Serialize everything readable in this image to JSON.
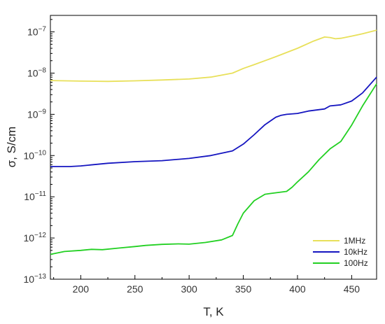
{
  "chart_data": {
    "type": "line",
    "title": "",
    "xlabel": "T, K",
    "ylabel": "σ, S/cm",
    "xlim": [
      172,
      473
    ],
    "ylim_log10": [
      -13,
      -6.6
    ],
    "y_scale": "log",
    "grid": false,
    "legend_position": "bottom-right",
    "x_ticks": [
      200,
      250,
      300,
      350,
      400,
      450
    ],
    "y_ticks": [
      {
        "exp": -13,
        "label": "−13"
      },
      {
        "exp": -12,
        "label": "−12"
      },
      {
        "exp": -11,
        "label": "−11"
      },
      {
        "exp": -10,
        "label": "−10"
      },
      {
        "exp": -9,
        "label": "−9"
      },
      {
        "exp": -8,
        "label": "−8"
      },
      {
        "exp": -7,
        "label": "−7"
      }
    ],
    "y_tick_base": "10",
    "series": [
      {
        "name": "1MHz",
        "color": "#e8e05a",
        "x": [
          172,
          200,
          225,
          250,
          275,
          300,
          320,
          340,
          350,
          360,
          380,
          400,
          415,
          425,
          430,
          435,
          440,
          450,
          460,
          473
        ],
        "y": [
          6.6e-09,
          6.4e-09,
          6.3e-09,
          6.5e-09,
          6.8e-09,
          7.2e-09,
          8e-09,
          1e-08,
          1.3e-08,
          1.6e-08,
          2.5e-08,
          4e-08,
          6e-08,
          7.5e-08,
          7.3e-08,
          6.8e-08,
          7e-08,
          7.9e-08,
          9e-08,
          1.1e-07
        ]
      },
      {
        "name": "10kHz",
        "color": "#1515c0",
        "x": [
          172,
          190,
          200,
          225,
          250,
          275,
          300,
          320,
          340,
          350,
          360,
          370,
          380,
          385,
          390,
          400,
          410,
          420,
          425,
          430,
          440,
          450,
          460,
          473
        ],
        "y": [
          5.4e-11,
          5.4e-11,
          5.6e-11,
          6.5e-11,
          7.1e-11,
          7.5e-11,
          8.5e-11,
          1e-10,
          1.3e-10,
          1.9e-10,
          3.2e-10,
          5.6e-10,
          8.5e-10,
          9.5e-10,
          1e-09,
          1.05e-09,
          1.2e-09,
          1.3e-09,
          1.35e-09,
          1.6e-09,
          1.7e-09,
          2.1e-09,
          3.3e-09,
          8e-09
        ]
      },
      {
        "name": "100Hz",
        "color": "#22d022",
        "x": [
          172,
          185,
          200,
          210,
          220,
          235,
          250,
          260,
          275,
          290,
          300,
          315,
          330,
          340,
          345,
          350,
          360,
          370,
          375,
          380,
          390,
          395,
          400,
          410,
          420,
          430,
          440,
          450,
          460,
          473
        ],
        "y": [
          4e-13,
          4.7e-13,
          5e-13,
          5.3e-13,
          5.2e-13,
          5.7e-13,
          6.2e-13,
          6.6e-13,
          7e-13,
          7.2e-13,
          7.1e-13,
          7.8e-13,
          9e-13,
          1.15e-12,
          2.2e-12,
          4e-12,
          8e-12,
          1.15e-11,
          1.2e-11,
          1.25e-11,
          1.35e-11,
          1.7e-11,
          2.3e-11,
          4e-11,
          8e-11,
          1.45e-10,
          2.2e-10,
          5.5e-10,
          1.6e-09,
          5.5e-09
        ]
      }
    ]
  }
}
